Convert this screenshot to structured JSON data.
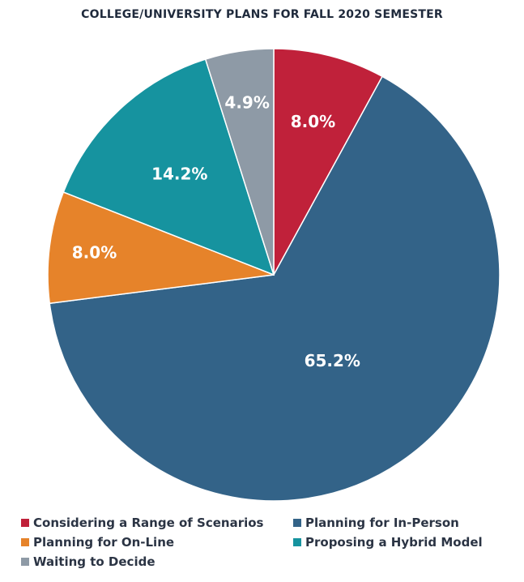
{
  "chart_data": {
    "type": "pie",
    "title": "COLLEGE/UNIVERSITY PLANS FOR FALL 2020 SEMESTER",
    "start": "12 o'clock, clockwise",
    "slices": [
      {
        "name": "Considering a Range of Scenarios",
        "value": 8.0,
        "label": "8.0%",
        "color": "#c0213a"
      },
      {
        "name": "Planning for In-Person",
        "value": 65.2,
        "label": "65.2%",
        "color": "#336388"
      },
      {
        "name": "Planning for On-Line",
        "value": 8.0,
        "label": "8.0%",
        "color": "#e6832a"
      },
      {
        "name": "Proposing a Hybrid Model",
        "value": 14.2,
        "label": "14.2%",
        "color": "#16939f"
      },
      {
        "name": "Waiting to Decide",
        "value": 4.9,
        "label": "4.9%",
        "color": "#8e9aa6"
      }
    ],
    "legend_order": [
      0,
      1,
      2,
      3,
      4
    ],
    "legend_placement": "bottom"
  }
}
